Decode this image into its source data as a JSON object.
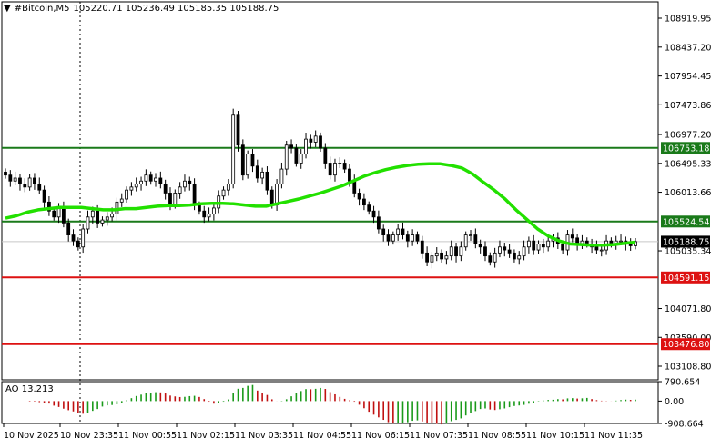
{
  "header": {
    "triangle": "▼",
    "symbol": "#Bitcoin,M5",
    "ohlc": "105220.71 105236.49 105185.35 105188.75"
  },
  "oscillator": {
    "label": "AO 13.213",
    "scale_labels": [
      "790.654",
      "0.00",
      "-908.664"
    ],
    "range": [
      -908.664,
      790.654
    ]
  },
  "levels": [
    {
      "label": "106753.18",
      "value": 106753.18,
      "color": "#1a7a1a"
    },
    {
      "label": "105524.54",
      "value": 105524.54,
      "color": "#1a7a1a"
    },
    {
      "label": "104591.15",
      "value": 104591.15,
      "color": "#dd1111"
    },
    {
      "label": "103476.80",
      "value": 103476.8,
      "color": "#dd1111"
    }
  ],
  "current_price": {
    "label": "105188.75",
    "value": 105188.75
  },
  "colors": {
    "candle": "#000000",
    "moving_average": "#22e000",
    "support_resistance_green": "#1a7a1a",
    "support_resistance_red": "#dd1111",
    "ao_up": "#1a9a1a",
    "ao_down": "#c01010",
    "grid": "#c8c8c8"
  },
  "chart_data": {
    "type": "line",
    "title": "#Bitcoin,M5",
    "xlabel": "",
    "ylabel": "",
    "ylim": [
      103108.8,
      108919.95
    ],
    "y_tick_labels": [
      "108919.95",
      "108437.20",
      "107954.45",
      "107473.86",
      "106977.20",
      "106495.33",
      "106013.66",
      "105035.34",
      "104071.80",
      "103590.00",
      "103108.80"
    ],
    "x_tick_labels": [
      "10 Nov 2025",
      "10 Nov 23:35",
      "11 Nov 00:55",
      "11 Nov 02:15",
      "11 Nov 03:35",
      "11 Nov 04:55",
      "11 Nov 06:15",
      "11 Nov 07:35",
      "11 Nov 08:55",
      "11 Nov 10:15",
      "11 Nov 11:35"
    ],
    "grid": false,
    "legend": "none",
    "series": [
      {
        "name": "",
        "type": "candles_close",
        "values": [
          106300,
          106200,
          106250,
          106150,
          106100,
          106250,
          106150,
          106050,
          105850,
          105700,
          105600,
          105750,
          105500,
          105300,
          105200,
          105100,
          105400,
          105600,
          105700,
          105500,
          105550,
          105600,
          105650,
          105850,
          105900,
          106050,
          106100,
          106150,
          106200,
          106300,
          106200,
          106250,
          106150,
          106000,
          105800,
          106000,
          106100,
          106200,
          106150,
          105800,
          105700,
          105600,
          105650,
          105750,
          105950,
          106050,
          106150,
          107300,
          106800,
          106300,
          106650,
          106450,
          106250,
          106350,
          106050,
          105800,
          106150,
          106400,
          106800,
          106750,
          106500,
          106650,
          106900,
          106850,
          106950,
          106750,
          106500,
          106300,
          106500,
          106500,
          106400,
          106200,
          106000,
          105900,
          105800,
          105700,
          105600,
          105400,
          105300,
          105200,
          105300,
          105400,
          105300,
          105200,
          105300,
          105200,
          105000,
          104850,
          104950,
          105000,
          104900,
          104950,
          105100,
          104950,
          105100,
          105300,
          105300,
          105150,
          105100,
          104950,
          104850,
          105000,
          105100,
          105050,
          105000,
          104900,
          104950,
          105100,
          105200,
          105050,
          105150,
          105100,
          105200,
          105250,
          105150,
          105050,
          105300,
          105250,
          105150,
          105200,
          105150,
          105100,
          105050,
          105050,
          105200,
          105150,
          105200,
          105200,
          105150,
          105120,
          105188.75
        ]
      },
      {
        "name": "",
        "type": "moving_average",
        "values": [
          105580,
          105620,
          105680,
          105720,
          105740,
          105760,
          105760,
          105760,
          105740,
          105720,
          105720,
          105740,
          105740,
          105760,
          105780,
          105790,
          105790,
          105800,
          105820,
          105830,
          105830,
          105820,
          105800,
          105780,
          105780,
          105820,
          105860,
          105900,
          105950,
          106000,
          106060,
          106120,
          106200,
          106280,
          106340,
          106390,
          106430,
          106460,
          106480,
          106490,
          106490,
          106460,
          106420,
          106320,
          106180,
          106050,
          105900,
          105720,
          105560,
          105400,
          105280,
          105200,
          105150,
          105140,
          105130,
          105130,
          105140,
          105160,
          105180
        ]
      }
    ]
  }
}
